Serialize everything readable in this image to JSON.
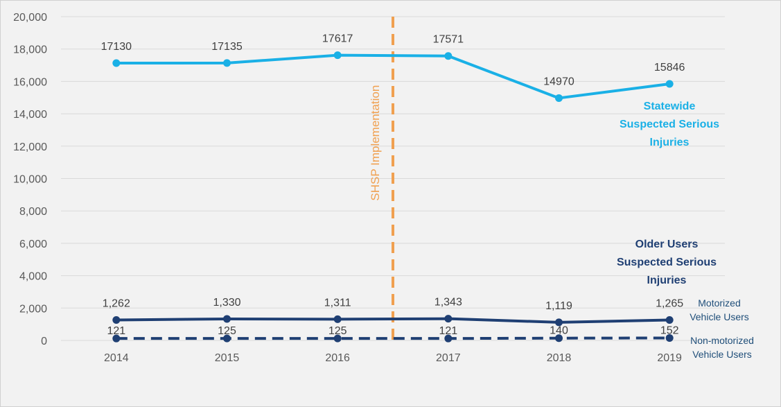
{
  "chart_data": {
    "type": "line",
    "title": "",
    "xlabel": "",
    "ylabel": "",
    "categories": [
      "2014",
      "2015",
      "2016",
      "2017",
      "2018",
      "2019"
    ],
    "ylim": [
      0,
      20000
    ],
    "y_ticks": [
      "0",
      "2,000",
      "4,000",
      "6,000",
      "8,000",
      "10,000",
      "12,000",
      "14,000",
      "16,000",
      "18,000",
      "20,000"
    ],
    "grid": true,
    "legend": "none",
    "series": [
      {
        "key": "statewide",
        "name_lines": [
          "Statewide",
          "Suspected Serious",
          "Injuries"
        ],
        "values": [
          17130,
          17135,
          17617,
          17571,
          14970,
          15846
        ],
        "labels": [
          "17130",
          "17135",
          "17617",
          "17571",
          "14970",
          "15846"
        ],
        "color": "#1ab0e6",
        "dashed": false
      },
      {
        "key": "motorized",
        "name_lines": [
          "Motorized",
          "Vehicle Users"
        ],
        "values": [
          1262,
          1330,
          1311,
          1343,
          1119,
          1265
        ],
        "labels": [
          "1,262",
          "1,330",
          "1,311",
          "1,343",
          "1,119",
          "1,265"
        ],
        "color": "#1f3f73",
        "dashed": false
      },
      {
        "key": "nonmotorized",
        "name_lines": [
          "Non-motorized",
          "Vehicle Users"
        ],
        "values": [
          121,
          125,
          125,
          121,
          140,
          152
        ],
        "labels": [
          "121",
          "125",
          "125",
          "121",
          "140",
          "152"
        ],
        "color": "#1f3f73",
        "dashed": true
      }
    ],
    "group_label_lines": [
      "Older Users",
      "Suspected Serious",
      "Injuries"
    ],
    "group_label_color": "#1f3f73",
    "annotation": {
      "text": "SHSP Implementation",
      "between": [
        "2016",
        "2017"
      ],
      "color": "#f0a050"
    }
  }
}
